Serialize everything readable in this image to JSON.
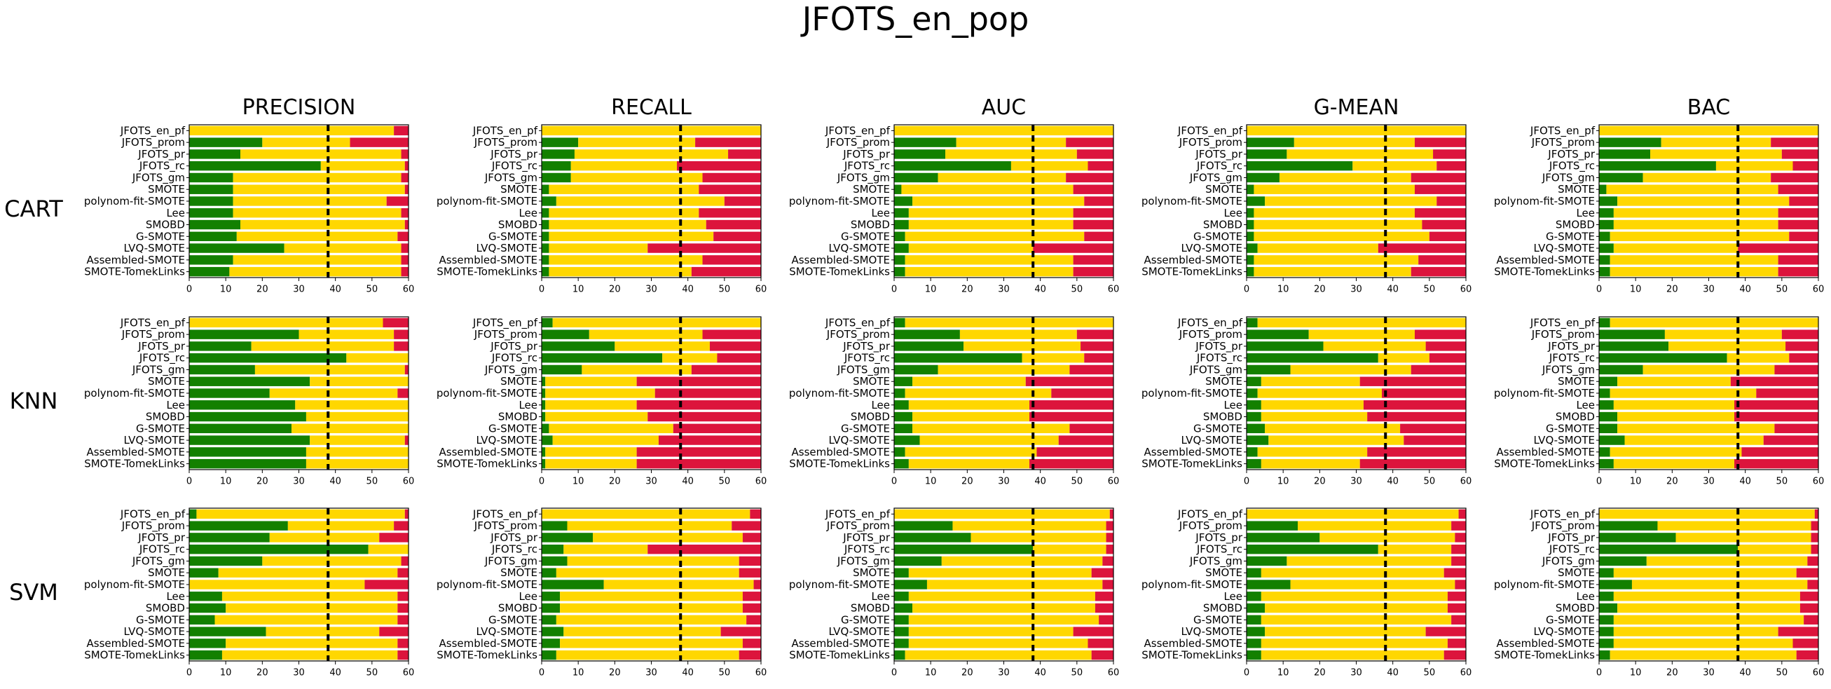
{
  "figure": {
    "title": "JFOTS_en_pop",
    "columns": [
      "PRECISION",
      "RECALL",
      "AUC",
      "G-MEAN",
      "BAC"
    ],
    "rows": [
      "CART",
      "KNN",
      "SVM"
    ],
    "categories": [
      "JFOTS_en_pf",
      "JFOTS_prom",
      "JFOTS_pr",
      "JFOTS_rc",
      "JFOTS_gm",
      "SMOTE",
      "polynom-fit-SMOTE",
      "Lee",
      "SMOBD",
      "G-SMOTE",
      "LVQ-SMOTE",
      "Assembled-SMOTE",
      "SMOTE-TomekLinks"
    ],
    "xlim": [
      0,
      60
    ],
    "xticks": [
      0,
      10,
      20,
      30,
      40,
      50,
      60
    ],
    "reference_line": 38,
    "colors": {
      "green": "#138000",
      "gold": "#FFD700",
      "red": "#DC143C",
      "line": "#000000"
    }
  },
  "chart_data": [
    {
      "type": "bar",
      "orientation": "horizontal",
      "stacked": true,
      "row": "CART",
      "title": "PRECISION",
      "xlim": [
        0,
        60
      ],
      "series": [
        {
          "name": "green",
          "values": [
            0,
            20,
            14,
            36,
            12,
            12,
            12,
            12,
            14,
            13,
            26,
            12,
            11
          ]
        },
        {
          "name": "gold",
          "values": [
            56,
            24,
            44,
            23,
            46,
            47,
            42,
            46,
            45,
            44,
            32,
            46,
            47
          ]
        },
        {
          "name": "red",
          "values": [
            4,
            16,
            2,
            1,
            2,
            1,
            6,
            2,
            1,
            3,
            2,
            2,
            2
          ]
        }
      ]
    },
    {
      "type": "bar",
      "orientation": "horizontal",
      "stacked": true,
      "row": "CART",
      "title": "RECALL",
      "xlim": [
        0,
        60
      ],
      "series": [
        {
          "name": "green",
          "values": [
            0,
            10,
            9,
            8,
            8,
            2,
            4,
            2,
            2,
            2,
            2,
            2,
            2
          ]
        },
        {
          "name": "gold",
          "values": [
            60,
            32,
            42,
            29,
            36,
            41,
            46,
            41,
            43,
            45,
            27,
            42,
            39
          ]
        },
        {
          "name": "red",
          "values": [
            0,
            18,
            9,
            23,
            16,
            17,
            10,
            17,
            15,
            13,
            31,
            16,
            19
          ]
        }
      ]
    },
    {
      "type": "bar",
      "orientation": "horizontal",
      "stacked": true,
      "row": "CART",
      "title": "AUC",
      "xlim": [
        0,
        60
      ],
      "series": [
        {
          "name": "green",
          "values": [
            0,
            17,
            14,
            32,
            12,
            2,
            5,
            4,
            4,
            3,
            4,
            3,
            3
          ]
        },
        {
          "name": "gold",
          "values": [
            60,
            30,
            36,
            21,
            35,
            47,
            47,
            45,
            45,
            49,
            34,
            46,
            46
          ]
        },
        {
          "name": "red",
          "values": [
            0,
            13,
            10,
            7,
            13,
            11,
            8,
            11,
            11,
            8,
            22,
            11,
            11
          ]
        }
      ]
    },
    {
      "type": "bar",
      "orientation": "horizontal",
      "stacked": true,
      "row": "CART",
      "title": "G-MEAN",
      "xlim": [
        0,
        60
      ],
      "series": [
        {
          "name": "green",
          "values": [
            0,
            13,
            11,
            29,
            9,
            2,
            5,
            2,
            2,
            2,
            3,
            2,
            2
          ]
        },
        {
          "name": "gold",
          "values": [
            60,
            33,
            40,
            23,
            36,
            44,
            47,
            44,
            46,
            48,
            33,
            45,
            43
          ]
        },
        {
          "name": "red",
          "values": [
            0,
            14,
            9,
            8,
            15,
            14,
            8,
            14,
            12,
            10,
            24,
            13,
            15
          ]
        }
      ]
    },
    {
      "type": "bar",
      "orientation": "horizontal",
      "stacked": true,
      "row": "CART",
      "title": "BAC",
      "xlim": [
        0,
        60
      ],
      "series": [
        {
          "name": "green",
          "values": [
            0,
            17,
            14,
            32,
            12,
            2,
            5,
            4,
            4,
            3,
            4,
            3,
            3
          ]
        },
        {
          "name": "gold",
          "values": [
            60,
            30,
            36,
            21,
            35,
            47,
            47,
            45,
            45,
            49,
            34,
            46,
            46
          ]
        },
        {
          "name": "red",
          "values": [
            0,
            13,
            10,
            7,
            13,
            11,
            8,
            11,
            11,
            8,
            22,
            11,
            11
          ]
        }
      ]
    },
    {
      "type": "bar",
      "orientation": "horizontal",
      "stacked": true,
      "row": "KNN",
      "title": "PRECISION",
      "xlim": [
        0,
        60
      ],
      "series": [
        {
          "name": "green",
          "values": [
            0,
            30,
            17,
            43,
            18,
            33,
            22,
            29,
            32,
            28,
            33,
            32,
            32
          ]
        },
        {
          "name": "gold",
          "values": [
            53,
            26,
            39,
            17,
            41,
            27,
            35,
            31,
            28,
            32,
            26,
            28,
            28
          ]
        },
        {
          "name": "red",
          "values": [
            7,
            4,
            4,
            0,
            1,
            0,
            3,
            0,
            0,
            0,
            1,
            0,
            0
          ]
        }
      ]
    },
    {
      "type": "bar",
      "orientation": "horizontal",
      "stacked": true,
      "row": "KNN",
      "title": "RECALL",
      "xlim": [
        0,
        60
      ],
      "series": [
        {
          "name": "green",
          "values": [
            3,
            13,
            20,
            33,
            11,
            1,
            1,
            1,
            1,
            2,
            3,
            1,
            1
          ]
        },
        {
          "name": "gold",
          "values": [
            57,
            31,
            26,
            15,
            30,
            25,
            30,
            25,
            28,
            34,
            29,
            25,
            25
          ]
        },
        {
          "name": "red",
          "values": [
            0,
            16,
            14,
            12,
            19,
            34,
            29,
            34,
            31,
            24,
            28,
            34,
            34
          ]
        }
      ]
    },
    {
      "type": "bar",
      "orientation": "horizontal",
      "stacked": true,
      "row": "KNN",
      "title": "AUC",
      "xlim": [
        0,
        60
      ],
      "series": [
        {
          "name": "green",
          "values": [
            3,
            18,
            19,
            35,
            12,
            5,
            3,
            4,
            5,
            5,
            7,
            3,
            4
          ]
        },
        {
          "name": "gold",
          "values": [
            57,
            32,
            32,
            17,
            36,
            31,
            40,
            33,
            32,
            43,
            38,
            36,
            33
          ]
        },
        {
          "name": "red",
          "values": [
            0,
            10,
            9,
            8,
            12,
            24,
            17,
            23,
            23,
            12,
            15,
            21,
            23
          ]
        }
      ]
    },
    {
      "type": "bar",
      "orientation": "horizontal",
      "stacked": true,
      "row": "KNN",
      "title": "G-MEAN",
      "xlim": [
        0,
        60
      ],
      "series": [
        {
          "name": "green",
          "values": [
            3,
            17,
            21,
            36,
            12,
            4,
            3,
            4,
            4,
            5,
            6,
            3,
            4
          ]
        },
        {
          "name": "gold",
          "values": [
            57,
            29,
            28,
            14,
            33,
            27,
            34,
            28,
            29,
            37,
            37,
            30,
            27
          ]
        },
        {
          "name": "red",
          "values": [
            0,
            14,
            11,
            10,
            15,
            29,
            23,
            28,
            27,
            18,
            17,
            27,
            29
          ]
        }
      ]
    },
    {
      "type": "bar",
      "orientation": "horizontal",
      "stacked": true,
      "row": "KNN",
      "title": "BAC",
      "xlim": [
        0,
        60
      ],
      "series": [
        {
          "name": "green",
          "values": [
            3,
            18,
            19,
            35,
            12,
            5,
            3,
            4,
            5,
            5,
            7,
            3,
            4
          ]
        },
        {
          "name": "gold",
          "values": [
            57,
            32,
            32,
            17,
            36,
            31,
            40,
            33,
            32,
            43,
            38,
            36,
            33
          ]
        },
        {
          "name": "red",
          "values": [
            0,
            10,
            9,
            8,
            12,
            24,
            17,
            23,
            23,
            12,
            15,
            21,
            23
          ]
        }
      ]
    },
    {
      "type": "bar",
      "orientation": "horizontal",
      "stacked": true,
      "row": "SVM",
      "title": "PRECISION",
      "xlim": [
        0,
        60
      ],
      "series": [
        {
          "name": "green",
          "values": [
            2,
            27,
            22,
            49,
            20,
            8,
            0,
            9,
            10,
            7,
            21,
            10,
            9
          ]
        },
        {
          "name": "gold",
          "values": [
            57,
            29,
            30,
            11,
            38,
            49,
            48,
            48,
            47,
            50,
            31,
            47,
            48
          ]
        },
        {
          "name": "red",
          "values": [
            1,
            4,
            8,
            0,
            2,
            3,
            12,
            3,
            3,
            3,
            8,
            3,
            3
          ]
        }
      ]
    },
    {
      "type": "bar",
      "orientation": "horizontal",
      "stacked": true,
      "row": "SVM",
      "title": "RECALL",
      "xlim": [
        0,
        60
      ],
      "series": [
        {
          "name": "green",
          "values": [
            0,
            7,
            14,
            6,
            7,
            4,
            17,
            5,
            5,
            4,
            6,
            5,
            4
          ]
        },
        {
          "name": "gold",
          "values": [
            57,
            45,
            41,
            23,
            47,
            50,
            41,
            50,
            50,
            52,
            43,
            50,
            50
          ]
        },
        {
          "name": "red",
          "values": [
            3,
            8,
            5,
            31,
            6,
            6,
            2,
            5,
            5,
            4,
            11,
            5,
            6
          ]
        }
      ]
    },
    {
      "type": "bar",
      "orientation": "horizontal",
      "stacked": true,
      "row": "SVM",
      "title": "AUC",
      "xlim": [
        0,
        60
      ],
      "series": [
        {
          "name": "green",
          "values": [
            0,
            16,
            21,
            38,
            13,
            4,
            9,
            4,
            5,
            4,
            4,
            4,
            3
          ]
        },
        {
          "name": "gold",
          "values": [
            59,
            42,
            37,
            20,
            44,
            50,
            48,
            51,
            50,
            52,
            45,
            49,
            51
          ]
        },
        {
          "name": "red",
          "values": [
            1,
            2,
            2,
            2,
            3,
            6,
            3,
            5,
            5,
            4,
            11,
            7,
            6
          ]
        }
      ]
    },
    {
      "type": "bar",
      "orientation": "horizontal",
      "stacked": true,
      "row": "SVM",
      "title": "G-MEAN",
      "xlim": [
        0,
        60
      ],
      "series": [
        {
          "name": "green",
          "values": [
            0,
            14,
            20,
            36,
            11,
            4,
            12,
            4,
            5,
            4,
            5,
            4,
            4
          ]
        },
        {
          "name": "gold",
          "values": [
            58,
            42,
            37,
            20,
            45,
            50,
            45,
            51,
            50,
            52,
            44,
            51,
            50
          ]
        },
        {
          "name": "red",
          "values": [
            2,
            4,
            3,
            4,
            4,
            6,
            3,
            5,
            5,
            4,
            11,
            5,
            6
          ]
        }
      ]
    },
    {
      "type": "bar",
      "orientation": "horizontal",
      "stacked": true,
      "row": "SVM",
      "title": "BAC",
      "xlim": [
        0,
        60
      ],
      "series": [
        {
          "name": "green",
          "values": [
            0,
            16,
            21,
            38,
            13,
            4,
            9,
            4,
            5,
            4,
            4,
            4,
            3
          ]
        },
        {
          "name": "gold",
          "values": [
            59,
            42,
            37,
            20,
            44,
            50,
            48,
            51,
            50,
            52,
            45,
            49,
            51
          ]
        },
        {
          "name": "red",
          "values": [
            1,
            2,
            2,
            2,
            3,
            6,
            3,
            5,
            5,
            4,
            11,
            7,
            6
          ]
        }
      ]
    }
  ]
}
